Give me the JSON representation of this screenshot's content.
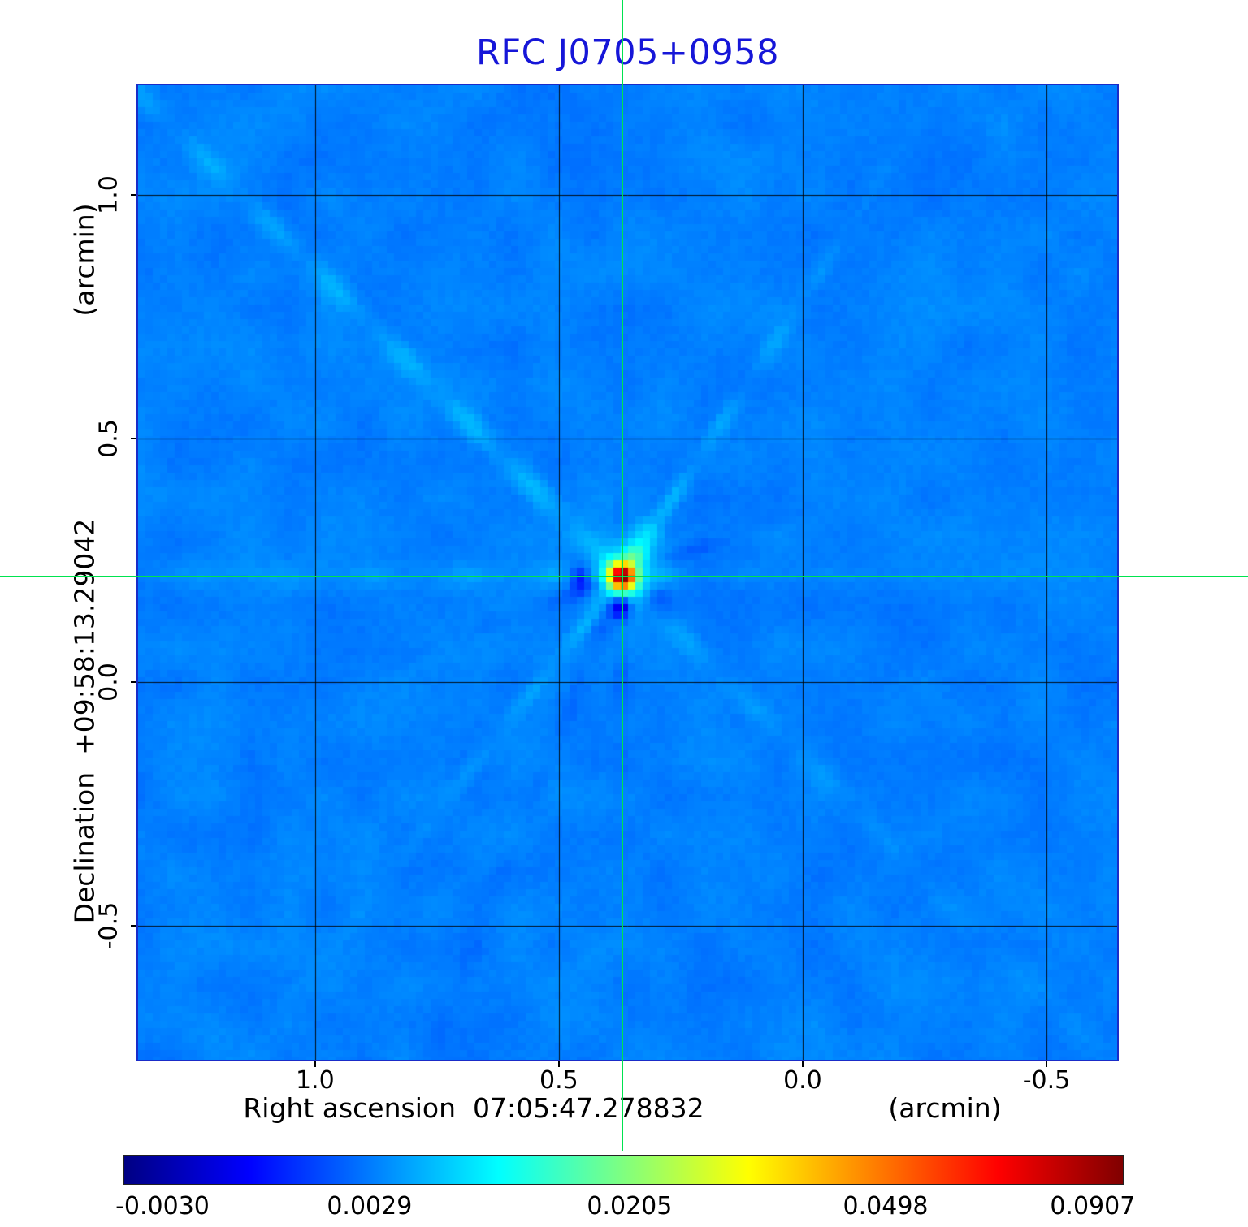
{
  "title": {
    "text": "RFC J0705+0958",
    "color": "#1616d8"
  },
  "chart_data": {
    "type": "heatmap",
    "title": "RFC J0705+0958",
    "x_axis": {
      "label": "Right ascension  07:05:47.278832",
      "unit_label": "(arcmin)",
      "tick_labels": [
        "1.0",
        "0.5",
        "0.0",
        "-0.5"
      ],
      "tick_values": [
        1.0,
        0.5,
        0.0,
        -0.5
      ],
      "range": [
        1.363,
        -0.645
      ]
    },
    "y_axis": {
      "label": "Declination  +09:58:13.29042",
      "unit_label": "(arcmin)",
      "tick_labels": [
        "1.0",
        "0.5",
        "0.0",
        "-0.5"
      ],
      "tick_values": [
        1.0,
        0.5,
        0.0,
        -0.5
      ],
      "range": [
        1.225,
        -0.775
      ]
    },
    "grid": {
      "x_values": [
        1.0,
        0.5,
        0.0,
        -0.5
      ],
      "y_values": [
        1.0,
        0.5,
        0.0,
        -0.5
      ],
      "color": "rgba(0,0,0,0.9)"
    },
    "source": {
      "x_arcmin": 0.37,
      "y_arcmin": 0.217,
      "peak_value": 0.0907
    },
    "crosshair": {
      "x_arcmin": 0.37,
      "y_arcmin": 0.217,
      "color": "#00e34f"
    },
    "colorbar": {
      "tick_labels": [
        "-0.0030",
        "0.0029",
        "0.0205",
        "0.0498",
        "0.0907"
      ],
      "tick_positions": [
        0.039,
        0.246,
        0.506,
        0.762,
        0.969
      ],
      "vmin": -0.0032,
      "vmax": 0.0955,
      "scale": "sqrt",
      "colormap": "jet",
      "background_value": 0.003,
      "gradient": [
        {
          "pos": 0.0,
          "color": "#000083"
        },
        {
          "pos": 0.125,
          "color": "#0000ff"
        },
        {
          "pos": 0.375,
          "color": "#00ffff"
        },
        {
          "pos": 0.625,
          "color": "#ffff00"
        },
        {
          "pos": 0.875,
          "color": "#ff0000"
        },
        {
          "pos": 1.0,
          "color": "#800000"
        }
      ]
    }
  }
}
